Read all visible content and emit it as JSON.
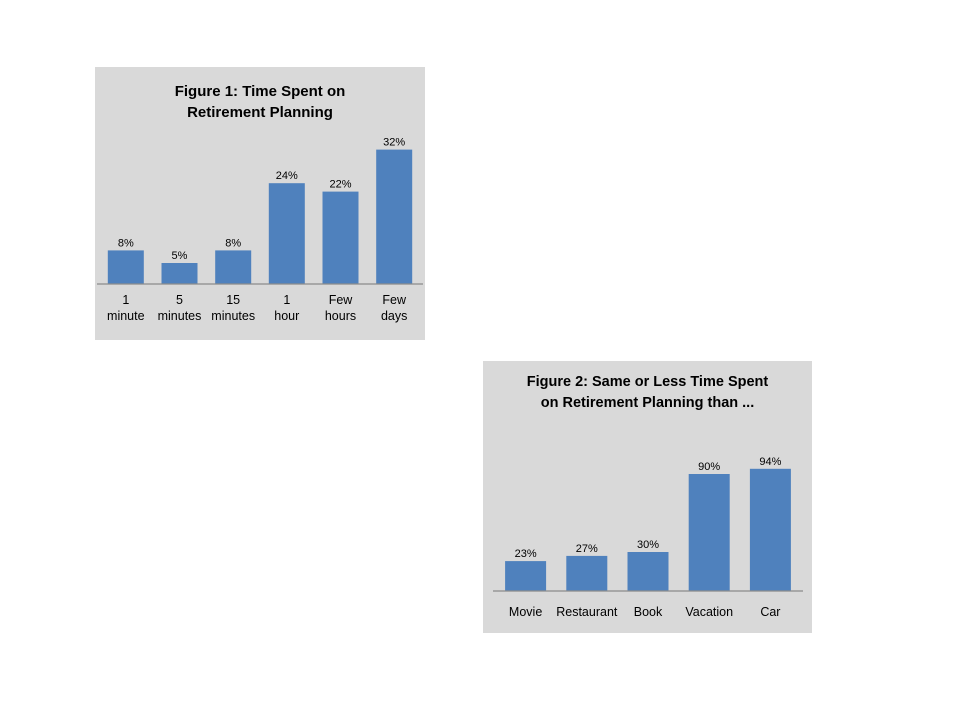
{
  "chart_data": [
    {
      "type": "bar",
      "title": [
        "Figure 1:  Time Spent on",
        "Retirement Planning"
      ],
      "categories": [
        [
          "1",
          "minute"
        ],
        [
          "5",
          "minutes"
        ],
        [
          "15",
          "minutes"
        ],
        [
          "1",
          "hour"
        ],
        [
          "Few",
          "hours"
        ],
        [
          "Few",
          "days"
        ]
      ],
      "values": [
        8,
        5,
        8,
        24,
        22,
        32
      ],
      "data_labels": [
        "8%",
        "5%",
        "8%",
        "24%",
        "22%",
        "32%"
      ],
      "unit": "%",
      "grid": false,
      "legend": "none",
      "bar_color": "#4f81bd",
      "background": "#d9d9d9"
    },
    {
      "type": "bar",
      "title": [
        "Figure 2: Same or Less Time Spent",
        "on Retirement Planning than ..."
      ],
      "categories": [
        [
          "Movie"
        ],
        [
          "Restaurant"
        ],
        [
          "Book"
        ],
        [
          "Vacation"
        ],
        [
          "Car"
        ]
      ],
      "values": [
        23,
        27,
        30,
        90,
        94
      ],
      "data_labels": [
        "23%",
        "27%",
        "30%",
        "90%",
        "94%"
      ],
      "unit": "%",
      "grid": false,
      "legend": "none",
      "bar_color": "#4f81bd",
      "background": "#d9d9d9"
    }
  ]
}
